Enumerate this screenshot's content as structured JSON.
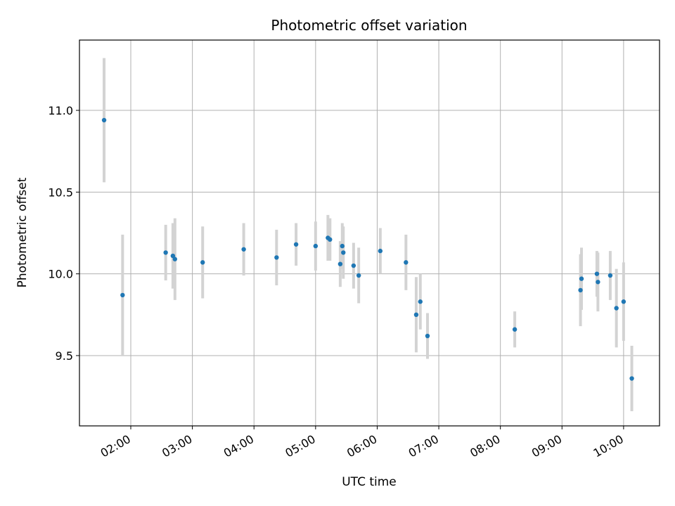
{
  "chart_data": {
    "type": "scatter",
    "title": "Photometric offset variation",
    "xlabel": "UTC time",
    "ylabel": "Photometric offset",
    "x_unit": "UTC time (HH:MM)",
    "xlim": [
      "01:10",
      "10:35"
    ],
    "ylim": [
      9.07,
      11.43
    ],
    "x_ticks": [
      "02:00",
      "03:00",
      "04:00",
      "05:00",
      "06:00",
      "07:00",
      "08:00",
      "09:00",
      "10:00"
    ],
    "y_ticks": [
      9.5,
      10.0,
      10.5,
      11.0
    ],
    "y_tick_labels": [
      "9.5",
      "10.0",
      "10.5",
      "11.0"
    ],
    "grid": true,
    "legend": "none",
    "colors": {
      "marker": "#1f77b4",
      "errorbar": "#d3d3d3",
      "grid": "#b0b0b0",
      "axes": "#000000"
    },
    "series": [
      {
        "points": [
          {
            "x": "01:34",
            "y": 10.94,
            "err": 0.38
          },
          {
            "x": "01:52",
            "y": 9.87,
            "err": 0.37
          },
          {
            "x": "02:34",
            "y": 10.13,
            "err": 0.17
          },
          {
            "x": "02:41",
            "y": 10.11,
            "err": 0.2
          },
          {
            "x": "02:43",
            "y": 10.09,
            "err": 0.25
          },
          {
            "x": "03:10",
            "y": 10.07,
            "err": 0.22
          },
          {
            "x": "03:50",
            "y": 10.15,
            "err": 0.16
          },
          {
            "x": "04:22",
            "y": 10.1,
            "err": 0.17
          },
          {
            "x": "04:41",
            "y": 10.18,
            "err": 0.13
          },
          {
            "x": "05:00",
            "y": 10.17,
            "err": 0.15
          },
          {
            "x": "05:12",
            "y": 10.22,
            "err": 0.14
          },
          {
            "x": "05:14",
            "y": 10.21,
            "err": 0.13
          },
          {
            "x": "05:24",
            "y": 10.06,
            "err": 0.14
          },
          {
            "x": "05:26",
            "y": 10.17,
            "err": 0.14
          },
          {
            "x": "05:27",
            "y": 10.13,
            "err": 0.16
          },
          {
            "x": "05:37",
            "y": 10.05,
            "err": 0.14
          },
          {
            "x": "05:42",
            "y": 9.99,
            "err": 0.17
          },
          {
            "x": "06:03",
            "y": 10.14,
            "err": 0.14
          },
          {
            "x": "06:28",
            "y": 10.07,
            "err": 0.17
          },
          {
            "x": "06:38",
            "y": 9.75,
            "err": 0.23
          },
          {
            "x": "06:42",
            "y": 9.83,
            "err": 0.17
          },
          {
            "x": "06:49",
            "y": 9.62,
            "err": 0.14
          },
          {
            "x": "08:14",
            "y": 9.66,
            "err": 0.11
          },
          {
            "x": "09:18",
            "y": 9.9,
            "err": 0.22
          },
          {
            "x": "09:19",
            "y": 9.97,
            "err": 0.19
          },
          {
            "x": "09:34",
            "y": 10.0,
            "err": 0.14
          },
          {
            "x": "09:35",
            "y": 9.95,
            "err": 0.18
          },
          {
            "x": "09:47",
            "y": 9.99,
            "err": 0.15
          },
          {
            "x": "09:53",
            "y": 9.79,
            "err": 0.24
          },
          {
            "x": "10:00",
            "y": 9.83,
            "err": 0.24
          },
          {
            "x": "10:08",
            "y": 9.36,
            "err": 0.2
          }
        ]
      }
    ]
  }
}
